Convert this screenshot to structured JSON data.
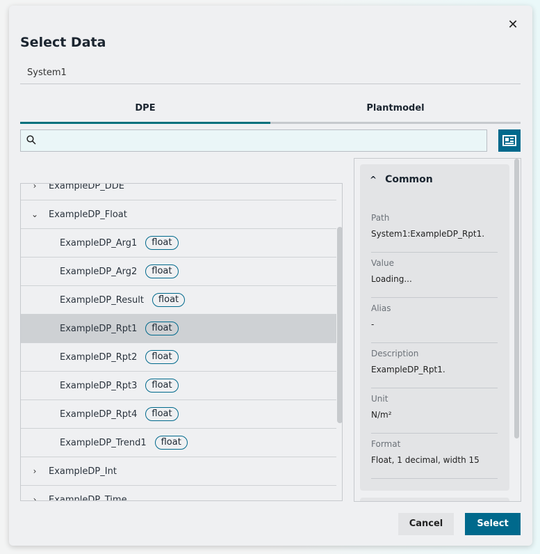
{
  "dialog": {
    "title": "Select Data",
    "close_icon": "close-icon",
    "system": "System1"
  },
  "tabs": [
    {
      "label": "DPE",
      "active": true
    },
    {
      "label": "Plantmodel",
      "active": false
    }
  ],
  "search": {
    "value": "",
    "placeholder": ""
  },
  "tree": {
    "rows": [
      {
        "label": "ExampleDP_DDE",
        "expanded": false
      },
      {
        "label": "ExampleDP_Float",
        "expanded": true
      },
      {
        "label": "ExampleDP_Arg1",
        "type": "float"
      },
      {
        "label": "ExampleDP_Arg2",
        "type": "float"
      },
      {
        "label": "ExampleDP_Result",
        "type": "float"
      },
      {
        "label": "ExampleDP_Rpt1",
        "type": "float",
        "selected": true
      },
      {
        "label": "ExampleDP_Rpt2",
        "type": "float"
      },
      {
        "label": "ExampleDP_Rpt3",
        "type": "float"
      },
      {
        "label": "ExampleDP_Rpt4",
        "type": "float"
      },
      {
        "label": "ExampleDP_Trend1",
        "type": "float"
      },
      {
        "label": "ExampleDP_Int",
        "expanded": false
      },
      {
        "label": "ExampleDP_Time",
        "expanded": false
      }
    ]
  },
  "details": {
    "section": "Common",
    "fields": [
      {
        "label": "Path",
        "value": "System1:ExampleDP_Rpt1."
      },
      {
        "label": "Value",
        "value": "Loading..."
      },
      {
        "label": "Alias",
        "value": "-"
      },
      {
        "label": "Description",
        "value": "ExampleDP_Rpt1."
      },
      {
        "label": "Unit",
        "value": "N/m²"
      },
      {
        "label": "Format",
        "value": "Float, 1 decimal, width 15"
      }
    ]
  },
  "footer": {
    "cancel": "Cancel",
    "select": "Select"
  },
  "colors": {
    "accent": "#00698c",
    "tab_active": "#00707c"
  }
}
